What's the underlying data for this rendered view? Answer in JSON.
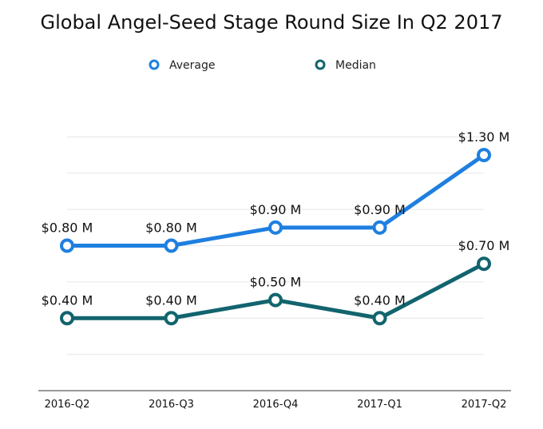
{
  "chart_data": {
    "type": "line",
    "title": "Global Angel-Seed Stage Round Size In Q2 2017",
    "categories": [
      "2016-Q2",
      "2016-Q3",
      "2016-Q4",
      "2017-Q1",
      "2017-Q2"
    ],
    "ylim": [
      0,
      1.6
    ],
    "grid": true,
    "legend_position": "top-center",
    "series": [
      {
        "name": "Average",
        "color": "#1f7fe0",
        "values": [
          0.8,
          0.8,
          0.9,
          0.9,
          1.3
        ],
        "labels": [
          "$0.80 M",
          "$0.80 M",
          "$0.90 M",
          "$0.90 M",
          "$1.30 M"
        ]
      },
      {
        "name": "Median",
        "color": "#12646e",
        "values": [
          0.4,
          0.4,
          0.5,
          0.4,
          0.7
        ],
        "labels": [
          "$0.40 M",
          "$0.40 M",
          "$0.50 M",
          "$0.40 M",
          "$0.70 M"
        ]
      }
    ]
  }
}
